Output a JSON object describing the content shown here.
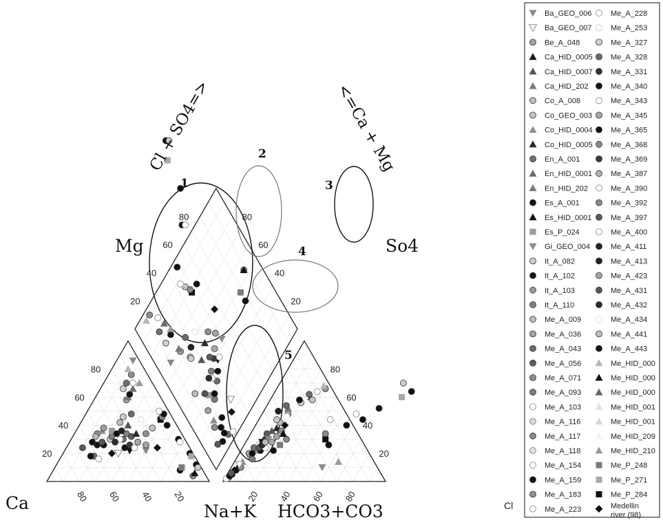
{
  "chart_data": {
    "type": "scatter",
    "subtype": "piper-diagram",
    "axes": {
      "diamond_left": "Cl + SO4=>",
      "diamond_right": "<=Ca + Mg",
      "left_triangle_left_vertex": "Ca",
      "left_triangle_top_vertex": "Mg",
      "left_triangle_base": "Na+K",
      "right_triangle_base": "HCO3+CO3",
      "right_triangle_top_vertex": "So4",
      "right_triangle_right_vertex": "Cl"
    },
    "ticks": {
      "diamond_left": [
        "20",
        "40",
        "60",
        "80"
      ],
      "diamond_right": [
        "80",
        "60",
        "40",
        "20"
      ],
      "left_side": [
        "20",
        "40",
        "60",
        "80"
      ],
      "left_base": [
        "80",
        "60",
        "40",
        "20"
      ],
      "right_base": [
        "20",
        "40",
        "60",
        "80"
      ],
      "right_side": [
        "80",
        "60",
        "40",
        "20"
      ]
    },
    "groups": [
      "1",
      "2",
      "3",
      "4",
      "5"
    ],
    "legend_col1": [
      {
        "name": "Ba_GEO_006",
        "marker": "tri-down",
        "color": "#8a8a8a"
      },
      {
        "name": "Ba_GEO_007",
        "marker": "tri-down-open",
        "color": "#8a8a8a"
      },
      {
        "name": "Be_A_048",
        "marker": "circle",
        "color": "#a0a0a0"
      },
      {
        "name": "Ca_HID_0005",
        "marker": "tri-up",
        "color": "#1a1a1a"
      },
      {
        "name": "Ca_HID_0007",
        "marker": "tri-up",
        "color": "#555555"
      },
      {
        "name": "Ca_HID_202",
        "marker": "tri-up",
        "color": "#7a7a7a"
      },
      {
        "name": "Co_A_008",
        "marker": "circle",
        "color": "#bdbdbd"
      },
      {
        "name": "Co_GEO_003",
        "marker": "circle",
        "color": "#c4c4c4"
      },
      {
        "name": "Co_HID_0004",
        "marker": "tri-up",
        "color": "#8f8f8f"
      },
      {
        "name": "Co_HID_0005",
        "marker": "tri-up",
        "color": "#2a2a2a"
      },
      {
        "name": "En_A_001",
        "marker": "circle",
        "color": "#707070"
      },
      {
        "name": "En_HID_0001",
        "marker": "tri-up",
        "color": "#6a6a6a"
      },
      {
        "name": "En_HID_202",
        "marker": "tri-up",
        "color": "#777777"
      },
      {
        "name": "Es_A_001",
        "marker": "circle",
        "color": "#111111"
      },
      {
        "name": "Es_HID_0001",
        "marker": "tri-up",
        "color": "#111111"
      },
      {
        "name": "Es_P_024",
        "marker": "square",
        "color": "#9a9a9a"
      },
      {
        "name": "Gi_GEO_004",
        "marker": "tri-down",
        "color": "#8a8a8a"
      },
      {
        "name": "It_A_082",
        "marker": "circle",
        "color": "#cccccc"
      },
      {
        "name": "It_A_102",
        "marker": "circle",
        "color": "#111111"
      },
      {
        "name": "It_A_103",
        "marker": "circle",
        "color": "#9b9b9b"
      },
      {
        "name": "It_A_110",
        "marker": "circle",
        "color": "#808080"
      },
      {
        "name": "Me_A_009",
        "marker": "circle",
        "color": "#bcbcbc"
      },
      {
        "name": "Me_A_036",
        "marker": "circle",
        "color": "#a3a3a3"
      },
      {
        "name": "Me_A_043",
        "marker": "circle",
        "color": "#6e6e6e"
      },
      {
        "name": "Me_A_056",
        "marker": "circle",
        "color": "#5c5c5c"
      },
      {
        "name": "Me_A_071",
        "marker": "circle",
        "color": "#8e8e8e"
      },
      {
        "name": "Me_A_093",
        "marker": "circle",
        "color": "#7e7e7e"
      },
      {
        "name": "Me_A_103",
        "marker": "circle-open",
        "color": "#999999"
      },
      {
        "name": "Me_A_116",
        "marker": "circle-light",
        "color": "#d9d9d9"
      },
      {
        "name": "Me_A_117",
        "marker": "circle",
        "color": "#8c8c8c"
      },
      {
        "name": "Me_A_118",
        "marker": "circle-light",
        "color": "#e0e0e0"
      },
      {
        "name": "Me_A_154",
        "marker": "circle-open",
        "color": "#999999"
      },
      {
        "name": "Me_A_159",
        "marker": "circle",
        "color": "#111111"
      },
      {
        "name": "Me_A_183",
        "marker": "circle",
        "color": "#909090"
      },
      {
        "name": "Me_A_223",
        "marker": "circle-open",
        "color": "#999999"
      }
    ],
    "legend_col2": [
      {
        "name": "Me_A_228",
        "marker": "circle-open",
        "color": "#999999"
      },
      {
        "name": "Me_A_253",
        "marker": "circle-open",
        "color": "#cccccc"
      },
      {
        "name": "Me_A_327",
        "marker": "circle",
        "color": "#d0d0d0"
      },
      {
        "name": "Me_A_328",
        "marker": "circle",
        "color": "#6b6b6b"
      },
      {
        "name": "Me_A_331",
        "marker": "circle",
        "color": "#333333"
      },
      {
        "name": "Me_A_340",
        "marker": "circle",
        "color": "#111111"
      },
      {
        "name": "Me_A_343",
        "marker": "circle-open",
        "color": "#999999"
      },
      {
        "name": "Me_A_345",
        "marker": "circle",
        "color": "#a8a8a8"
      },
      {
        "name": "Me_A_365",
        "marker": "circle",
        "color": "#111111"
      },
      {
        "name": "Me_A_368",
        "marker": "circle",
        "color": "#8a8a8a"
      },
      {
        "name": "Me_A_369",
        "marker": "circle",
        "color": "#3a3a3a"
      },
      {
        "name": "Me_A_387",
        "marker": "circle",
        "color": "#b0b0b0"
      },
      {
        "name": "Me_A_390",
        "marker": "circle-open",
        "color": "#999999"
      },
      {
        "name": "Me_A_392",
        "marker": "circle",
        "color": "#8a8a8a"
      },
      {
        "name": "Me_A_397",
        "marker": "circle",
        "color": "#5a5a5a"
      },
      {
        "name": "Me_A_400",
        "marker": "circle-open",
        "color": "#999999"
      },
      {
        "name": "Me_A_411",
        "marker": "circle",
        "color": "#222222"
      },
      {
        "name": "Me_A_413",
        "marker": "circle",
        "color": "#222222"
      },
      {
        "name": "Me_A_423",
        "marker": "circle",
        "color": "#a6a6a6"
      },
      {
        "name": "Me_A_431",
        "marker": "circle",
        "color": "#555555"
      },
      {
        "name": "Me_A_432",
        "marker": "circle",
        "color": "#2b2b2b"
      },
      {
        "name": "Me_A_434",
        "marker": "circle-open",
        "color": "#dddddd"
      },
      {
        "name": "Me_A_441",
        "marker": "circle",
        "color": "#bbbbbb"
      },
      {
        "name": "Me_A_443",
        "marker": "circle",
        "color": "#111111"
      },
      {
        "name": "Me_HID_000",
        "marker": "tri-up",
        "color": "#b5b5b5"
      },
      {
        "name": "Me_HID_000",
        "marker": "tri-up",
        "color": "#111111"
      },
      {
        "name": "Me_HID_000",
        "marker": "tri-up",
        "color": "#666666"
      },
      {
        "name": "Me_HID_001",
        "marker": "tri-up",
        "color": "#e2e2e2"
      },
      {
        "name": "Me_HID_001",
        "marker": "tri-up",
        "color": "#d6d6d6"
      },
      {
        "name": "Me_HID_209",
        "marker": "tri-up",
        "color": "#f0f0f0"
      },
      {
        "name": "Me_HID_210",
        "marker": "tri-up",
        "color": "#9a9a9a"
      },
      {
        "name": "Me_P_248",
        "marker": "square",
        "color": "#7a7a7a"
      },
      {
        "name": "Me_P_271",
        "marker": "square",
        "color": "#a8a8a8"
      },
      {
        "name": "Me_P_284",
        "marker": "square",
        "color": "#111111"
      },
      {
        "name": "Medellin river (98)",
        "marker": "diamond",
        "color": "#111111"
      }
    ],
    "samples": [
      {
        "ca": 62,
        "mg": 18,
        "cl": 2,
        "so4": 3,
        "m": "circle",
        "c": "#707070"
      },
      {
        "ca": 64,
        "mg": 18,
        "cl": 3,
        "so4": 5,
        "m": "circle",
        "c": "#111111"
      },
      {
        "ca": 56,
        "mg": 26,
        "cl": 4,
        "so4": 8,
        "m": "circle",
        "c": "#111111"
      },
      {
        "ca": 52,
        "mg": 26,
        "cl": 5,
        "so4": 10,
        "m": "circle",
        "c": "#111111"
      },
      {
        "ca": 52,
        "mg": 34,
        "cl": 6,
        "so4": 10,
        "m": "circle",
        "c": "#8e8e8e"
      },
      {
        "ca": 48,
        "mg": 36,
        "cl": 5,
        "so4": 14,
        "m": "tri-up",
        "c": "#8f8f8f"
      },
      {
        "ca": 46,
        "mg": 30,
        "cl": 8,
        "so4": 18,
        "m": "circle",
        "c": "#cccccc"
      },
      {
        "ca": 44,
        "mg": 32,
        "cl": 10,
        "so4": 16,
        "m": "circle",
        "c": "#7e7e7e"
      },
      {
        "ca": 46,
        "mg": 38,
        "cl": 6,
        "so4": 20,
        "m": "circle",
        "c": "#a0a0a0"
      },
      {
        "ca": 42,
        "mg": 36,
        "cl": 9,
        "so4": 22,
        "m": "square",
        "c": "#9a9a9a"
      },
      {
        "ca": 40,
        "mg": 34,
        "cl": 8,
        "so4": 20,
        "m": "circle",
        "c": "#111111"
      },
      {
        "ca": 38,
        "mg": 30,
        "cl": 7,
        "so4": 24,
        "m": "circle",
        "c": "#6e6e6e"
      },
      {
        "ca": 40,
        "mg": 30,
        "cl": 9,
        "so4": 26,
        "m": "circle-open",
        "c": "#999999"
      },
      {
        "ca": 40,
        "mg": 24,
        "cl": 12,
        "so4": 22,
        "m": "circle",
        "c": "#111111"
      },
      {
        "ca": 38,
        "mg": 22,
        "cl": 10,
        "so4": 28,
        "m": "tri-down",
        "c": "#111111"
      },
      {
        "ca": 36,
        "mg": 26,
        "cl": 11,
        "so4": 30,
        "m": "circle",
        "c": "#3a3a3a"
      },
      {
        "ca": 34,
        "mg": 34,
        "cl": 12,
        "so4": 26,
        "m": "circle",
        "c": "#808080"
      },
      {
        "ca": 34,
        "mg": 24,
        "cl": 14,
        "so4": 24,
        "m": "circle-open",
        "c": "#999999"
      },
      {
        "ca": 32,
        "mg": 32,
        "cl": 10,
        "so4": 34,
        "m": "circle",
        "c": "#5c5c5c"
      },
      {
        "ca": 30,
        "mg": 28,
        "cl": 16,
        "so4": 28,
        "m": "circle",
        "c": "#a8a8a8"
      },
      {
        "ca": 30,
        "mg": 40,
        "cl": 12,
        "so4": 36,
        "m": "tri-up",
        "c": "#555555"
      },
      {
        "ca": 28,
        "mg": 22,
        "cl": 13,
        "so4": 30,
        "m": "tri-down",
        "c": "#8a8a8a"
      },
      {
        "ca": 26,
        "mg": 26,
        "cl": 17,
        "so4": 32,
        "m": "circle",
        "c": "#a6a6a6"
      },
      {
        "ca": 28,
        "mg": 34,
        "cl": 14,
        "so4": 38,
        "m": "tri-up",
        "c": "#2a2a2a"
      },
      {
        "ca": 22,
        "mg": 34,
        "cl": 18,
        "so4": 36,
        "m": "circle",
        "c": "#909090"
      },
      {
        "ca": 20,
        "mg": 24,
        "cl": 18,
        "so4": 40,
        "m": "diamond",
        "c": "#111111"
      },
      {
        "ca": 14,
        "mg": 8,
        "cl": 20,
        "so4": 22,
        "m": "circle",
        "c": "#111111"
      },
      {
        "ca": 12,
        "mg": 10,
        "cl": 22,
        "so4": 26,
        "m": "square",
        "c": "#7a7a7a"
      },
      {
        "ca": 8,
        "mg": 4,
        "cl": 24,
        "so4": 30,
        "m": "circle",
        "c": "#8a8a8a"
      },
      {
        "ca": 6,
        "mg": 6,
        "cl": 20,
        "so4": 34,
        "m": "tri-up",
        "c": "#111111"
      },
      {
        "ca": 34,
        "mg": 42,
        "cl": 14,
        "so4": 42,
        "m": "circle",
        "c": "#bcbcbc"
      },
      {
        "ca": 30,
        "mg": 46,
        "cl": 11,
        "so4": 44,
        "m": "circle",
        "c": "#cccccc"
      },
      {
        "ca": 22,
        "mg": 58,
        "cl": 16,
        "so4": 48,
        "m": "circle",
        "c": "#a3a3a3"
      },
      {
        "ca": 20,
        "mg": 60,
        "cl": 14,
        "so4": 52,
        "m": "tri-up",
        "c": "#777777"
      },
      {
        "ca": 20,
        "mg": 66,
        "cl": 20,
        "so4": 56,
        "m": "circle",
        "c": "#d0d0d0"
      },
      {
        "ca": 18,
        "mg": 62,
        "cl": 18,
        "so4": 58,
        "m": "circle",
        "c": "#111111"
      },
      {
        "ca": 14,
        "mg": 66,
        "cl": 24,
        "so4": 60,
        "m": "tri-up",
        "c": "#6a6a6a"
      },
      {
        "ca": 16,
        "mg": 70,
        "cl": 22,
        "so4": 62,
        "m": "circle",
        "c": "#707070"
      },
      {
        "ca": 12,
        "mg": 70,
        "cl": 26,
        "so4": 64,
        "m": "circle-open",
        "c": "#999999"
      },
      {
        "ca": 10,
        "mg": 76,
        "cl": 30,
        "so4": 66,
        "m": "circle",
        "c": "#8e8e8e"
      },
      {
        "ca": 10,
        "mg": 80,
        "cl": 28,
        "so4": 68,
        "m": "tri-up",
        "c": "#b5b5b5"
      },
      {
        "ca": 46,
        "mg": 20,
        "cl": 4,
        "so4": 12,
        "m": "tri-down-open",
        "c": "#8a8a8a"
      },
      {
        "ca": 50,
        "mg": 20,
        "cl": 3,
        "so4": 8,
        "m": "diamond",
        "c": "#111111"
      },
      {
        "ca": 60,
        "mg": 16,
        "cl": 1,
        "so4": 2,
        "m": "circle-open",
        "c": "#999999"
      },
      {
        "ca": 58,
        "mg": 28,
        "cl": 2,
        "so4": 4,
        "m": "circle",
        "c": "#111111"
      },
      {
        "ca": 66,
        "mg": 24,
        "cl": 2,
        "so4": 6,
        "m": "circle",
        "c": "#5a5a5a"
      },
      {
        "ca": 36,
        "mg": 36,
        "cl": 9,
        "so4": 50,
        "m": "circle",
        "c": "#222222"
      },
      {
        "ca": 24,
        "mg": 48,
        "cl": 12,
        "so4": 54,
        "m": "circle",
        "c": "#6b6b6b"
      },
      {
        "ca": 20,
        "mg": 44,
        "cl": 16,
        "so4": 46,
        "m": "circle-open",
        "c": "#dddddd"
      },
      {
        "ca": 16,
        "mg": 38,
        "cl": 26,
        "so4": 58,
        "m": "circle",
        "c": "#c4c4c4"
      },
      {
        "ca": 6,
        "mg": 40,
        "cl": 52,
        "so4": 26,
        "m": "circle",
        "c": "#111111"
      },
      {
        "ca": 8,
        "mg": 44,
        "cl": 48,
        "so4": 30,
        "m": "square",
        "c": "#111111"
      },
      {
        "ca": 6,
        "mg": 46,
        "cl": 46,
        "so4": 34,
        "m": "circle",
        "c": "#8a8a8a"
      },
      {
        "ca": 4,
        "mg": 48,
        "cl": 56,
        "so4": 40,
        "m": "circle",
        "c": "#111111"
      },
      {
        "ca": 6,
        "mg": 50,
        "cl": 44,
        "so4": 44,
        "m": "circle-open",
        "c": "#999999"
      },
      {
        "ca": 4,
        "mg": 30,
        "cl": 64,
        "so4": 44,
        "m": "circle",
        "c": "#111111"
      },
      {
        "ca": 4,
        "mg": 28,
        "cl": 58,
        "so4": 48,
        "m": "circle-open",
        "c": "#999999"
      },
      {
        "ca": 2,
        "mg": 20,
        "cl": 70,
        "so4": 52,
        "m": "circle",
        "c": "#111111"
      },
      {
        "ca": 2,
        "mg": 18,
        "cl": 80,
        "so4": 60,
        "m": "square",
        "c": "#a8a8a8"
      },
      {
        "ca": 2,
        "mg": 12,
        "cl": 84,
        "so4": 64,
        "m": "circle",
        "c": "#111111"
      },
      {
        "ca": 2,
        "mg": 10,
        "cl": 76,
        "so4": 70,
        "m": "circle",
        "c": "#cccccc"
      },
      {
        "ca": 8,
        "mg": 70,
        "cl": 64,
        "so4": 14,
        "m": "tri-up",
        "c": "#9a9a9a"
      },
      {
        "ca": 4,
        "mg": 86,
        "cl": 56,
        "so4": 10,
        "m": "tri-down",
        "c": "#8a8a8a"
      },
      {
        "ca": 52,
        "mg": 28,
        "cl": 10,
        "so4": 24,
        "m": "circle",
        "c": "#555555"
      },
      {
        "ca": 44,
        "mg": 28,
        "cl": 11,
        "so4": 26,
        "m": "circle",
        "c": "#2b2b2b"
      },
      {
        "ca": 54,
        "mg": 32,
        "cl": 12,
        "so4": 28,
        "m": "circle",
        "c": "#bbbbbb"
      }
    ]
  }
}
